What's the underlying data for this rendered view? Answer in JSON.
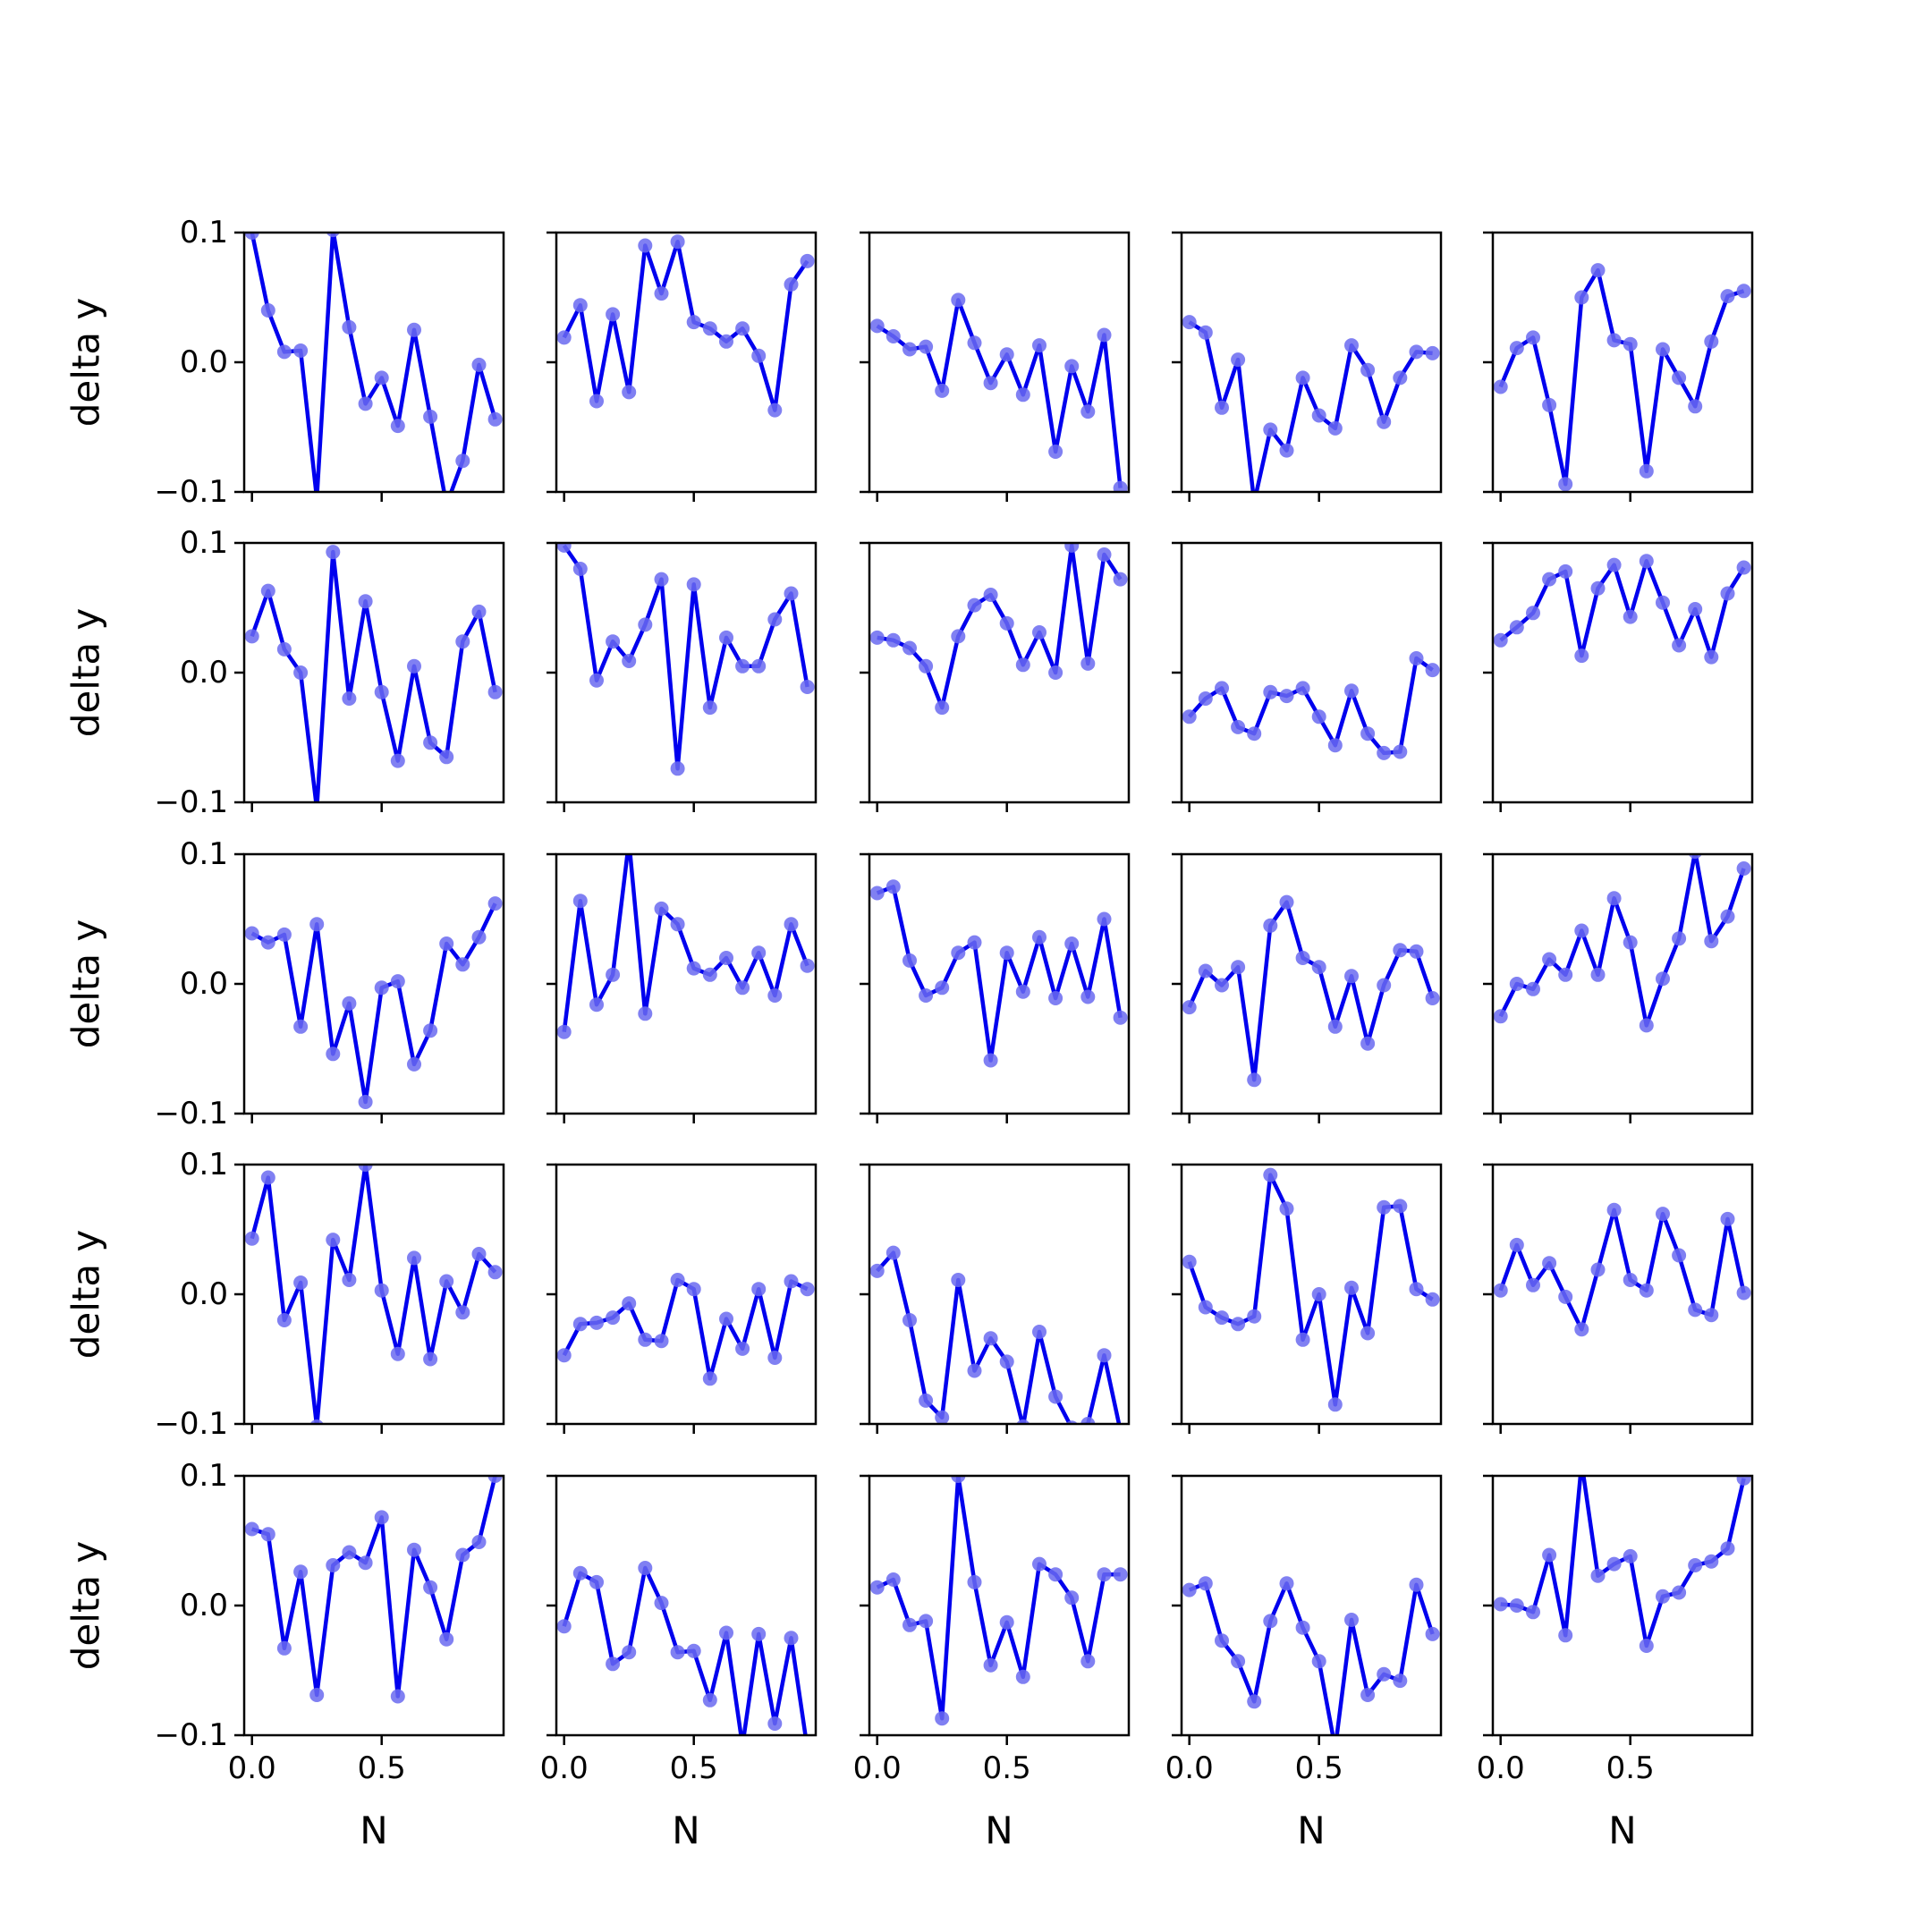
{
  "figure": {
    "rows": 5,
    "cols": 5,
    "line_color": "#0000ee",
    "marker_color": "#6a6af0",
    "y_tick_labels": [
      "0.1",
      "0.0",
      "−0.1"
    ],
    "x_tick_labels": [
      "0.0",
      "0.5"
    ],
    "ylabel": "delta y",
    "xlabel": "N"
  },
  "chart_data": {
    "type": "line",
    "layout": "5x5 grid of small multiples",
    "xlim": [
      -0.03,
      0.97
    ],
    "ylim": [
      -0.1,
      0.1
    ],
    "x_ticks": [
      0.0,
      0.5
    ],
    "y_ticks": [
      0.1,
      0.0,
      -0.1
    ],
    "xlabel": "N",
    "ylabel": "delta y",
    "sharex": true,
    "sharey": true,
    "grid": false,
    "x": [
      0.0,
      0.0625,
      0.125,
      0.1875,
      0.25,
      0.3125,
      0.375,
      0.4375,
      0.5,
      0.5625,
      0.625,
      0.6875,
      0.75,
      0.8125,
      0.875,
      0.9375
    ],
    "panels": [
      [
        0.1,
        0.04,
        0.008,
        0.009,
        -0.105,
        0.102,
        0.027,
        -0.032,
        -0.012,
        -0.049,
        0.025,
        -0.042,
        -0.11,
        -0.076,
        -0.002,
        -0.044
      ],
      [
        0.019,
        0.044,
        -0.03,
        0.037,
        -0.023,
        0.09,
        0.053,
        0.093,
        0.031,
        0.026,
        0.016,
        0.026,
        0.005,
        -0.037,
        0.06,
        0.078
      ],
      [
        0.028,
        0.02,
        0.01,
        0.012,
        -0.022,
        0.048,
        0.015,
        -0.016,
        0.006,
        -0.025,
        0.013,
        -0.069,
        -0.003,
        -0.038,
        0.021,
        -0.097
      ],
      [
        0.031,
        0.023,
        -0.035,
        0.002,
        -0.108,
        -0.052,
        -0.068,
        -0.012,
        -0.041,
        -0.051,
        0.013,
        -0.006,
        -0.046,
        -0.012,
        0.008,
        0.007
      ],
      [
        -0.019,
        0.011,
        0.019,
        -0.033,
        -0.094,
        0.05,
        0.071,
        0.017,
        0.014,
        -0.084,
        0.01,
        -0.012,
        -0.034,
        0.016,
        0.051,
        0.055
      ],
      [
        0.028,
        0.063,
        0.018,
        0.0,
        -0.105,
        0.093,
        -0.02,
        0.055,
        -0.015,
        -0.068,
        0.005,
        -0.054,
        -0.065,
        0.024,
        0.047,
        -0.015
      ],
      [
        0.098,
        0.08,
        -0.006,
        0.024,
        0.009,
        0.037,
        0.072,
        -0.074,
        0.068,
        -0.027,
        0.027,
        0.005,
        0.005,
        0.041,
        0.061,
        -0.011
      ],
      [
        0.027,
        0.025,
        0.019,
        0.005,
        -0.027,
        0.028,
        0.052,
        0.06,
        0.038,
        0.006,
        0.031,
        0.0,
        0.098,
        0.007,
        0.091,
        0.072
      ],
      [
        -0.034,
        -0.02,
        -0.012,
        -0.042,
        -0.047,
        -0.015,
        -0.018,
        -0.012,
        -0.034,
        -0.056,
        -0.014,
        -0.047,
        -0.062,
        -0.061,
        0.011,
        0.002
      ],
      [
        0.025,
        0.035,
        0.046,
        0.072,
        0.078,
        0.013,
        0.065,
        0.083,
        0.043,
        0.086,
        0.054,
        0.021,
        0.049,
        0.012,
        0.061,
        0.081
      ],
      [
        0.039,
        0.032,
        0.038,
        -0.033,
        0.046,
        -0.054,
        -0.015,
        -0.091,
        -0.003,
        0.002,
        -0.062,
        -0.036,
        0.031,
        0.015,
        0.036,
        0.062
      ],
      [
        -0.037,
        0.064,
        -0.016,
        0.007,
        0.11,
        -0.023,
        0.058,
        0.046,
        0.012,
        0.007,
        0.02,
        -0.003,
        0.024,
        -0.009,
        0.046,
        0.014
      ],
      [
        0.07,
        0.075,
        0.018,
        -0.009,
        -0.003,
        0.024,
        0.032,
        -0.059,
        0.024,
        -0.006,
        0.036,
        -0.011,
        0.031,
        -0.01,
        0.05,
        -0.026
      ],
      [
        -0.018,
        0.01,
        -0.001,
        0.013,
        -0.074,
        0.045,
        0.063,
        0.02,
        0.013,
        -0.033,
        0.006,
        -0.046,
        -0.001,
        0.026,
        0.025,
        -0.011
      ],
      [
        -0.025,
        0.0,
        -0.004,
        0.019,
        0.007,
        0.041,
        0.007,
        0.066,
        0.032,
        -0.032,
        0.004,
        0.035,
        0.102,
        0.033,
        0.052,
        0.089
      ],
      [
        0.043,
        0.09,
        -0.02,
        0.009,
        -0.102,
        0.042,
        0.011,
        0.1,
        0.003,
        -0.046,
        0.028,
        -0.05,
        0.01,
        -0.014,
        0.031,
        0.017
      ],
      [
        -0.047,
        -0.023,
        -0.022,
        -0.018,
        -0.007,
        -0.035,
        -0.036,
        0.011,
        0.004,
        -0.065,
        -0.019,
        -0.042,
        0.004,
        -0.049,
        0.01,
        0.004
      ],
      [
        0.018,
        0.032,
        -0.02,
        -0.082,
        -0.095,
        0.011,
        -0.059,
        -0.034,
        -0.052,
        -0.102,
        -0.029,
        -0.079,
        -0.103,
        -0.1,
        -0.047,
        -0.105
      ],
      [
        0.025,
        -0.01,
        -0.018,
        -0.023,
        -0.017,
        0.092,
        0.066,
        -0.035,
        0.0,
        -0.085,
        0.005,
        -0.03,
        0.067,
        0.068,
        0.004,
        -0.004
      ],
      [
        0.003,
        0.038,
        0.007,
        0.024,
        -0.002,
        -0.027,
        0.019,
        0.065,
        0.011,
        0.003,
        0.062,
        0.03,
        -0.012,
        -0.016,
        0.058,
        0.001
      ],
      [
        0.059,
        0.055,
        -0.033,
        0.026,
        -0.069,
        0.031,
        0.041,
        0.033,
        0.068,
        -0.07,
        0.043,
        0.014,
        -0.026,
        0.039,
        0.049,
        0.1
      ],
      [
        -0.016,
        0.025,
        0.018,
        -0.045,
        -0.036,
        0.029,
        0.002,
        -0.036,
        -0.035,
        -0.073,
        -0.021,
        -0.108,
        -0.022,
        -0.091,
        -0.025,
        -0.11
      ],
      [
        0.014,
        0.02,
        -0.015,
        -0.012,
        -0.087,
        0.1,
        0.018,
        -0.046,
        -0.013,
        -0.055,
        0.032,
        0.024,
        0.006,
        -0.043,
        0.024,
        0.024
      ],
      [
        0.012,
        0.017,
        -0.027,
        -0.043,
        -0.074,
        -0.012,
        0.017,
        -0.017,
        -0.043,
        -0.11,
        -0.011,
        -0.069,
        -0.053,
        -0.058,
        0.016,
        -0.022
      ],
      [
        0.001,
        0.0,
        -0.005,
        0.039,
        -0.023,
        0.11,
        0.023,
        0.032,
        0.038,
        -0.031,
        0.007,
        0.01,
        0.031,
        0.034,
        0.044,
        0.098
      ]
    ]
  }
}
